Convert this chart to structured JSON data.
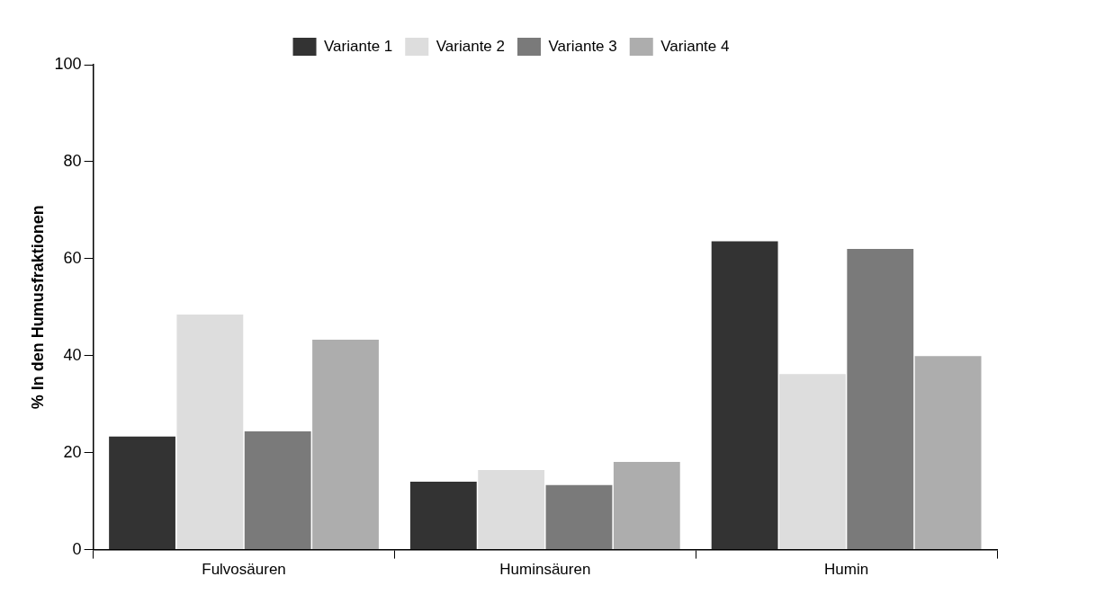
{
  "chart_data": {
    "type": "bar",
    "ylabel": "% In den Humusfraktionen",
    "categories": [
      "Fulvosäuren",
      "Huminsäuren",
      "Humin"
    ],
    "series": [
      {
        "name": "Variante 1",
        "color": "#333333",
        "values": [
          23.3,
          14.0,
          63.6
        ]
      },
      {
        "name": "Variante 2",
        "color": "#dddddd",
        "values": [
          48.5,
          16.4,
          36.2
        ]
      },
      {
        "name": "Variante 3",
        "color": "#7a7a7a",
        "values": [
          24.4,
          13.3,
          62.0
        ]
      },
      {
        "name": "Variante 4",
        "color": "#adadad",
        "values": [
          43.3,
          18.1,
          39.9
        ]
      }
    ],
    "ylim": [
      0,
      100
    ],
    "yticks": [
      0,
      20,
      40,
      60,
      80,
      100
    ],
    "grid": false,
    "legend": "top"
  }
}
